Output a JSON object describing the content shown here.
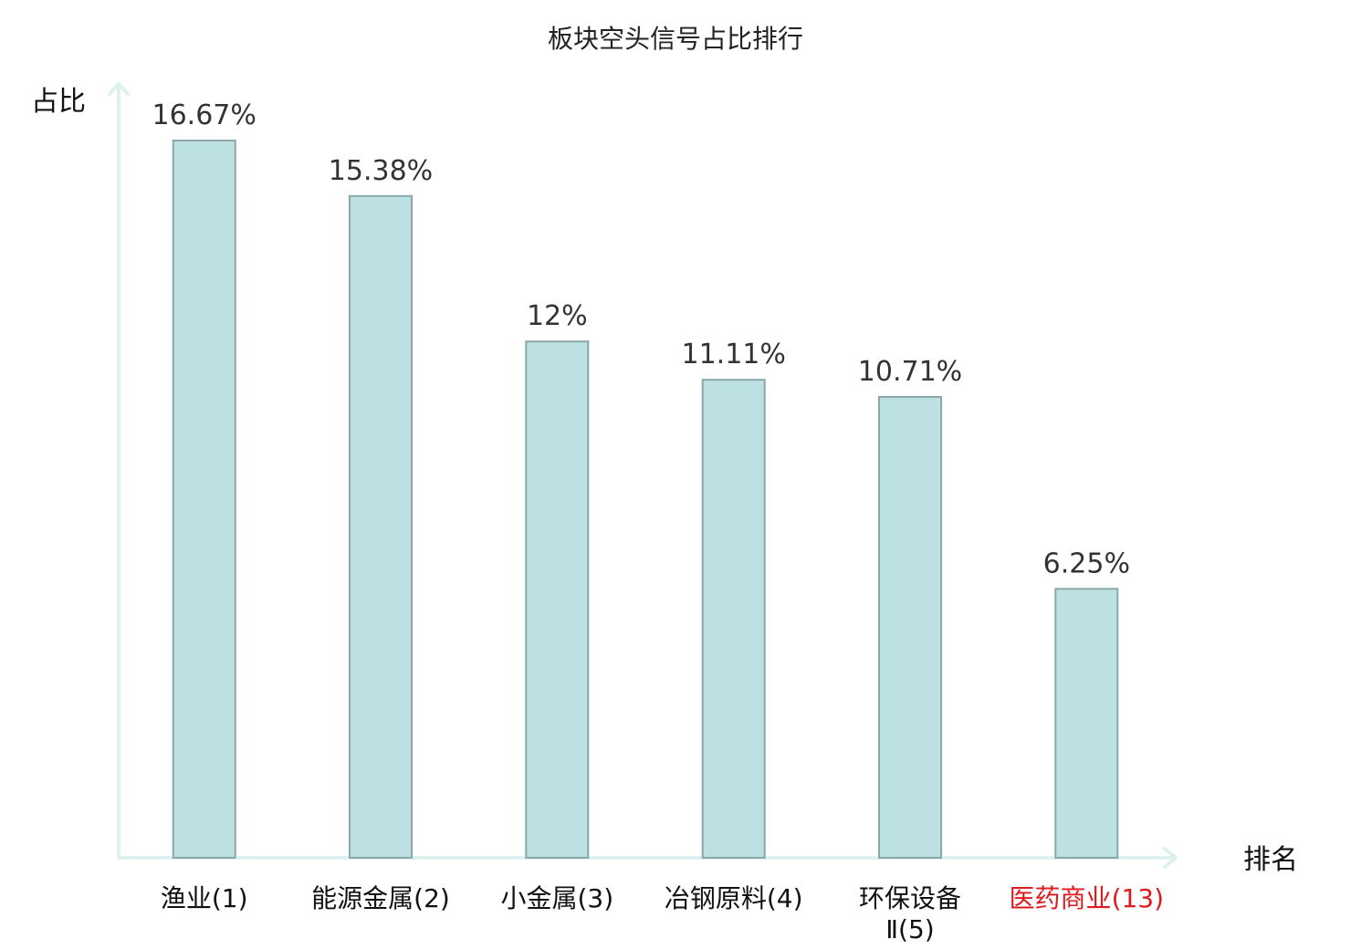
{
  "chart_data": {
    "type": "bar",
    "title": "板块空头信号占比排行",
    "ylabel": "占比",
    "xlabel": "排名",
    "ylim": [
      0,
      17
    ],
    "grid": false,
    "legend": "none",
    "categories": [
      {
        "name": "渔业",
        "rank": "(1)",
        "highlight": false
      },
      {
        "name": "能源金属",
        "rank": "(2)",
        "highlight": false
      },
      {
        "name": "小金属",
        "rank": "(3)",
        "highlight": false
      },
      {
        "name": "冶钢原料",
        "rank": "(4)",
        "highlight": false
      },
      {
        "name": "环保设备",
        "rank": "Ⅱ(5)",
        "highlight": false
      },
      {
        "name": "医药商业",
        "rank": "(13)",
        "highlight": true
      }
    ],
    "values": [
      16.67,
      15.38,
      12,
      11.11,
      10.71,
      6.25
    ],
    "value_labels": [
      "16.67%",
      "15.38%",
      "12%",
      "11.11%",
      "10.71%",
      "6.25%"
    ],
    "colors": {
      "bar_fill": "#bde0e2",
      "bar_stroke": "#8aa8aa",
      "axis": "#dff1ef",
      "highlight": "#e0191f"
    }
  }
}
